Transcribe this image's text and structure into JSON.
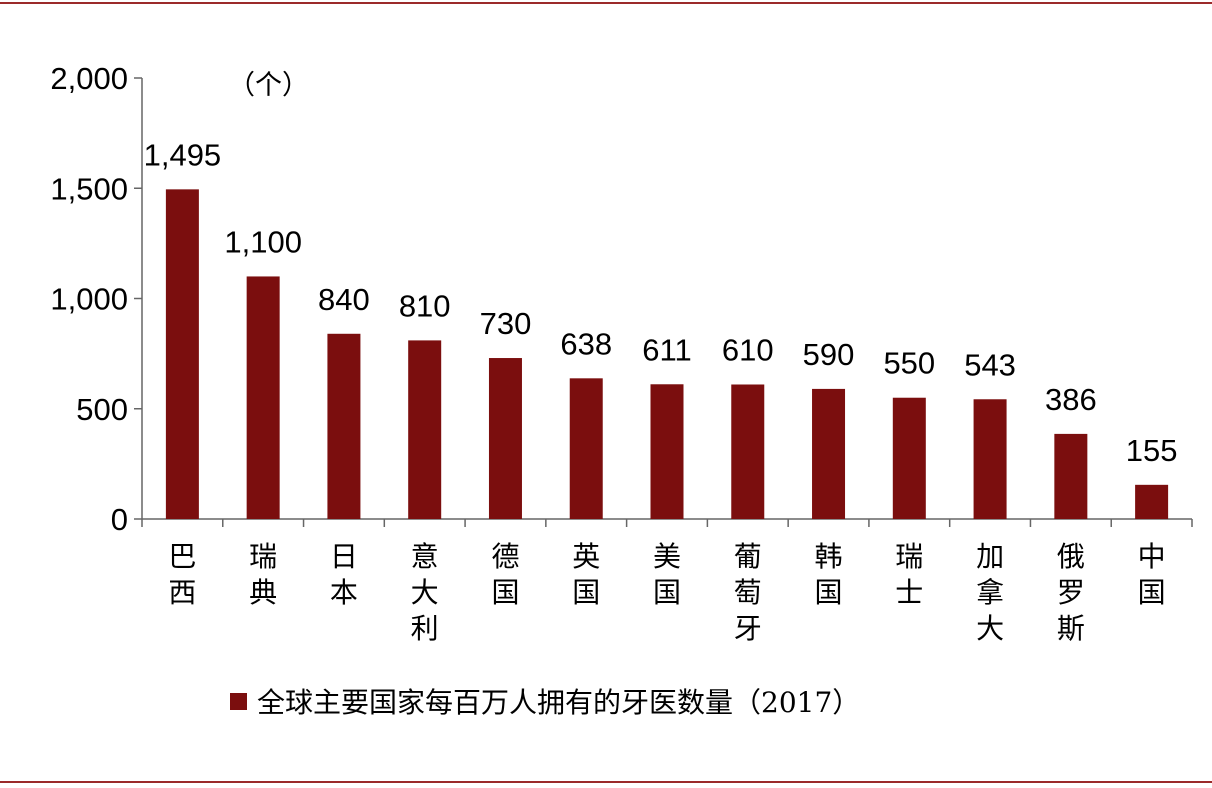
{
  "colors": {
    "bar": "#7b0e0e",
    "rule": "#9b2a2a",
    "axis": "#666666"
  },
  "chart_data": {
    "type": "bar",
    "unit_label": "（个）",
    "categories": [
      "巴西",
      "瑞典",
      "日本",
      "意大利",
      "德国",
      "英国",
      "美国",
      "葡萄牙",
      "韩国",
      "瑞士",
      "加拿大",
      "俄罗斯",
      "中国"
    ],
    "values": [
      1495,
      1100,
      840,
      810,
      730,
      638,
      611,
      610,
      590,
      550,
      543,
      386,
      155
    ],
    "value_labels": [
      "1,495",
      "1,100",
      "840",
      "810",
      "730",
      "638",
      "611",
      "610",
      "590",
      "550",
      "543",
      "386",
      "155"
    ],
    "y_ticks": [
      0,
      500,
      1000,
      1500,
      2000
    ],
    "y_tick_labels": [
      "0",
      "500",
      "1,000",
      "1,500",
      "2,000"
    ],
    "ylim": [
      0,
      2000
    ],
    "legend": {
      "label": "全球主要国家每百万人拥有的牙医数量（2017）",
      "position": "bottom"
    },
    "grid": false
  }
}
